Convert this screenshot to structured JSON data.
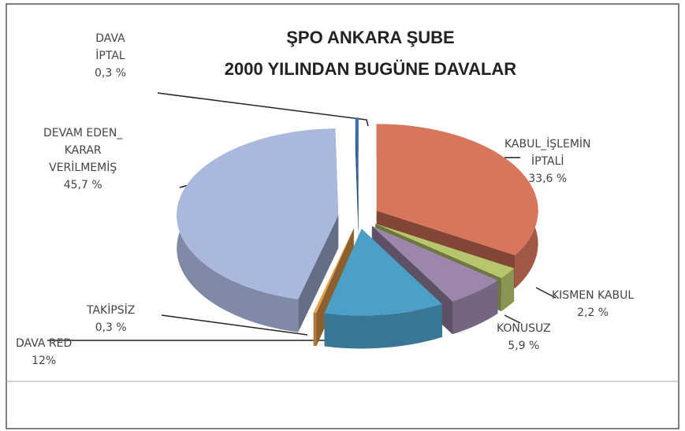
{
  "chart_data": {
    "type": "pie",
    "title": "ŞPO ANKARA ŞUBE\n2000 YILINDAN BUGÜNE DAVALAR",
    "categories": [
      "KABUL_İŞLEMİN\nİPTALİ",
      "KISMEN KABUL",
      "KONUSUZ",
      "DAVA RED",
      "TAKİPSİZ",
      "DEVAM EDEN_\nKARAR\nVERİLMEMİŞ",
      "DAVA\nİPTAL"
    ],
    "values": [
      33.6,
      2.2,
      5.9,
      12,
      0.3,
      45.7,
      0.3
    ],
    "value_labels": [
      "33,6 %",
      "2,2 %",
      "5,9 %",
      "12%",
      "0,3 %",
      "45,7 %",
      "0,3 %"
    ],
    "colors": [
      "#d9755c",
      "#b7c66c",
      "#9c87aa",
      "#4c9fc6",
      "#e8a04c",
      "#aab8de",
      "#3b70b2"
    ]
  }
}
